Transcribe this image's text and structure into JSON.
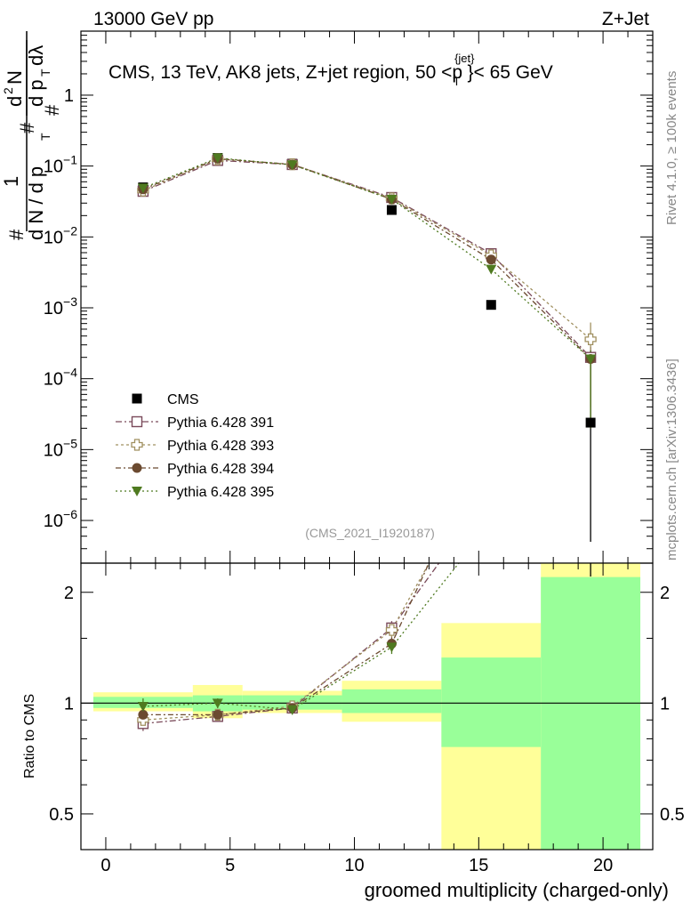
{
  "header": {
    "left_label": "13000 GeV pp",
    "right_label": "Z+Jet"
  },
  "side_labels": {
    "rivet": "Rivet 4.1.0, ≥ 100k events",
    "mcplots": "mcplots.cern.ch [arXiv:1306.3436]"
  },
  "colors": {
    "cms": "#000000",
    "p391": "#7a4a5a",
    "p393": "#a09060",
    "p394": "#6b4a30",
    "p395": "#4f7a20",
    "band_yellow": "#ffff99",
    "band_green": "#99ff99"
  },
  "chart_data": [
    {
      "type": "scatter",
      "title": "CMS, 13 TeV, AK8 jets, Z+jet region, 50 <p_T^{jet}< 65 GeV",
      "title_parts": [
        "CMS, 13 TeV, AK8 jets, Z+jet region, 50 <p",
        "{jet}",
        "T",
        "}< 65 GeV"
      ],
      "ylabel_parts": [
        "1",
        "d N / d p",
        "T",
        "#",
        "d",
        "2",
        "N",
        "d p",
        "T",
        "dλ",
        "#",
        "#"
      ],
      "yscale": "log",
      "ylim": [
        2.5e-07,
        8.0
      ],
      "xlim": [
        -1,
        22
      ],
      "y_ticks": [
        {
          "value": 1,
          "base": "1",
          "exp": ""
        },
        {
          "value": 0.1,
          "base": "10",
          "exp": "−1"
        },
        {
          "value": 0.01,
          "base": "10",
          "exp": "−2"
        },
        {
          "value": 0.001,
          "base": "10",
          "exp": "−3"
        },
        {
          "value": 0.0001,
          "base": "10",
          "exp": "−4"
        },
        {
          "value": 1e-05,
          "base": "10",
          "exp": "−5"
        },
        {
          "value": 1e-06,
          "base": "10",
          "exp": "−6"
        }
      ],
      "watermark": "(CMS_2021_I1920187)",
      "x": [
        1.5,
        4.5,
        7.5,
        11.5,
        15.5,
        19.5
      ],
      "series": [
        {
          "name": "CMS",
          "key": "cms",
          "marker": "square-filled",
          "values": [
            0.05,
            0.13,
            0.108,
            0.024,
            0.0011,
            2.4e-05
          ],
          "err_lo": [
            0,
            0,
            0,
            0,
            0,
            2.35e-05
          ],
          "err_hi": [
            0,
            0,
            0,
            0,
            0,
            0
          ]
        },
        {
          "name": "Pythia 6.428 391",
          "key": "p391",
          "marker": "square-open",
          "values": [
            0.044,
            0.12,
            0.105,
            0.036,
            0.0058,
            0.0002
          ],
          "err_lo": [
            0,
            0,
            0,
            0,
            0,
            0.00018
          ],
          "err_hi": [
            0,
            0,
            0,
            0,
            0,
            8e-05
          ]
        },
        {
          "name": "Pythia 6.428 393",
          "key": "p393",
          "marker": "cross-open",
          "values": [
            0.045,
            0.125,
            0.106,
            0.035,
            0.0055,
            0.00036
          ],
          "err_lo": [
            0,
            0,
            0,
            0,
            0,
            0.00032
          ],
          "err_hi": [
            0,
            0,
            0,
            0,
            0,
            0.00026
          ]
        },
        {
          "name": "Pythia 6.428 394",
          "key": "p394",
          "marker": "circle-filled",
          "values": [
            0.047,
            0.127,
            0.105,
            0.034,
            0.0048,
            0.00019
          ],
          "err_lo": [
            0,
            0,
            0,
            0,
            0,
            0.00017
          ],
          "err_hi": [
            0,
            0,
            0,
            0,
            0,
            6e-05
          ]
        },
        {
          "name": "Pythia 6.428 395",
          "key": "p395",
          "marker": "triangle-down-filled",
          "values": [
            0.049,
            0.13,
            0.104,
            0.034,
            0.0035,
            0.00019
          ],
          "err_lo": [
            0,
            0,
            0,
            0,
            0,
            0.00017
          ],
          "err_hi": [
            0,
            0,
            0,
            0,
            0,
            6e-05
          ]
        }
      ]
    },
    {
      "type": "scatter",
      "ylabel": "Ratio to CMS",
      "xlabel": "groomed multiplicity (charged-only)",
      "yscale": "log",
      "ylim": [
        0.4,
        2.4
      ],
      "xlim": [
        -1,
        22
      ],
      "x_ticks": [
        0,
        5,
        10,
        15,
        20
      ],
      "x_tick_labels": [
        "0",
        "5",
        "10",
        "15",
        "20"
      ],
      "y_ticks": [
        0.5,
        1,
        2
      ],
      "y_tick_labels": [
        "0.5",
        "1",
        "2"
      ],
      "reference_line": 1,
      "bands": [
        {
          "x_range": [
            -0.5,
            3.5
          ],
          "yellow": [
            0.95,
            1.07
          ],
          "green": [
            0.97,
            1.04
          ]
        },
        {
          "x_range": [
            3.5,
            5.5
          ],
          "yellow": [
            0.91,
            1.12
          ],
          "green": [
            0.95,
            1.05
          ]
        },
        {
          "x_range": [
            5.5,
            9.5
          ],
          "yellow": [
            0.94,
            1.08
          ],
          "green": [
            0.96,
            1.05
          ]
        },
        {
          "x_range": [
            9.5,
            13.5
          ],
          "yellow": [
            0.89,
            1.15
          ],
          "green": [
            0.94,
            1.09
          ]
        },
        {
          "x_range": [
            13.5,
            17.5
          ],
          "yellow": [
            0.38,
            1.65
          ],
          "green": [
            0.76,
            1.33
          ]
        },
        {
          "x_range": [
            17.5,
            21.5
          ],
          "yellow": [
            0.35,
            2.4
          ],
          "green": [
            0.35,
            2.2
          ]
        }
      ],
      "x": [
        1.5,
        4.5,
        7.5,
        11.5
      ],
      "x_trend_end": [
        13.4,
        13.0,
        13.0,
        14.2
      ],
      "series": [
        {
          "name": "Pythia 6.428 391",
          "key": "p391",
          "marker": "square-open",
          "values": [
            0.88,
            0.92,
            0.97,
            1.6
          ],
          "err": [
            0.04,
            0.02,
            0.02,
            0.07
          ]
        },
        {
          "name": "Pythia 6.428 393",
          "key": "p393",
          "marker": "cross-open",
          "values": [
            0.9,
            0.93,
            0.98,
            1.58
          ],
          "err": [
            0.04,
            0.02,
            0.02,
            0.07
          ]
        },
        {
          "name": "Pythia 6.428 394",
          "key": "p394",
          "marker": "circle-filled",
          "values": [
            0.93,
            0.93,
            0.97,
            1.45
          ],
          "err": [
            0.04,
            0.02,
            0.02,
            0.06
          ]
        },
        {
          "name": "Pythia 6.428 395",
          "key": "p395",
          "marker": "triangle-down-filled",
          "values": [
            0.98,
            1.0,
            0.96,
            1.42
          ],
          "err": [
            0.05,
            0.03,
            0.03,
            0.06
          ]
        }
      ]
    }
  ]
}
